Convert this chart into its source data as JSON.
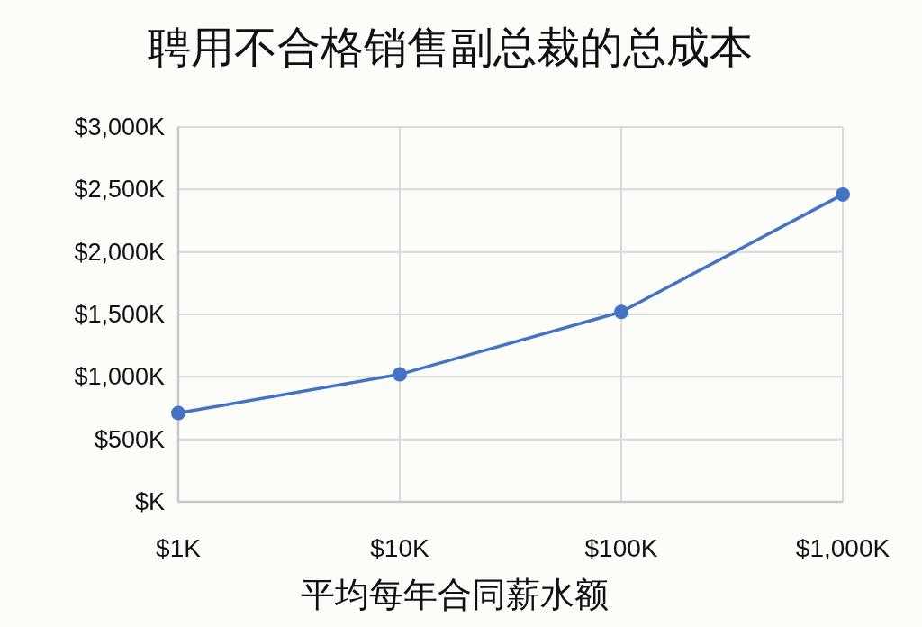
{
  "chart_data": {
    "type": "line",
    "title": "聘用不合格销售副总裁的总成本",
    "xlabel": "平均每年合同薪水额",
    "x": [
      1,
      10,
      100,
      1000
    ],
    "series": [
      {
        "color": "#4472c4",
        "values": [
          710,
          1020,
          1520,
          2460
        ]
      }
    ],
    "log": "x",
    "xlim": [
      1,
      1000
    ],
    "xticks": [
      {
        "value": 1,
        "label": "$1K"
      },
      {
        "value": 10,
        "label": "$10K"
      },
      {
        "value": 100,
        "label": "$100K"
      },
      {
        "value": 1000,
        "label": "$1,000K"
      }
    ],
    "ylim": [
      0,
      3000
    ],
    "yticks": [
      {
        "value": 0,
        "label": "$K"
      },
      {
        "value": 500,
        "label": "$500K"
      },
      {
        "value": 1000,
        "label": "$1,000K"
      },
      {
        "value": 1500,
        "label": "$1,500K"
      },
      {
        "value": 2000,
        "label": "$2,000K"
      },
      {
        "value": 2500,
        "label": "$2,500K"
      },
      {
        "value": 3000,
        "label": "$3,000K"
      }
    ],
    "grid": true,
    "marker": "circle",
    "line_style": "solid"
  }
}
